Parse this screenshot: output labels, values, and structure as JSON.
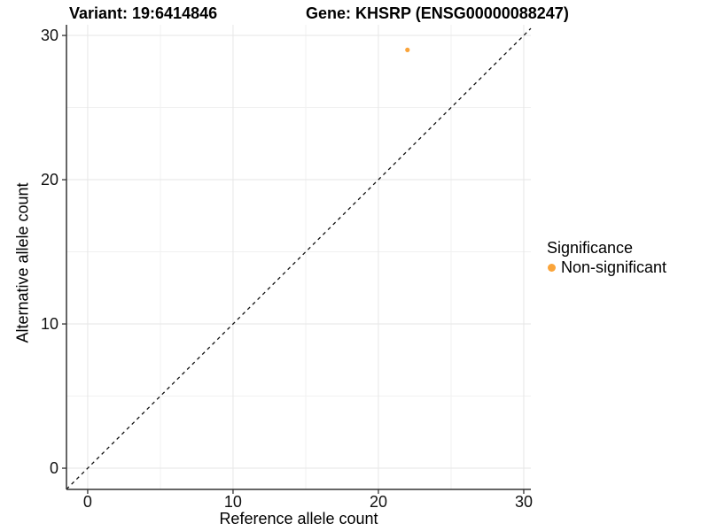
{
  "chart_data": {
    "type": "scatter",
    "title": {
      "left": "Variant: 19:6414846",
      "right": "Gene: KHSRP (ENSG00000088247)"
    },
    "xlabel": "Reference allele count",
    "ylabel": "Alternative allele count",
    "xlim": [
      -1.46,
      30.49
    ],
    "ylim": [
      -1.47,
      30.74
    ],
    "x_ticks": [
      0,
      10,
      20,
      30
    ],
    "y_ticks": [
      0,
      10,
      20,
      30
    ],
    "x_minor_ticks": [
      5,
      15,
      25
    ],
    "y_minor_ticks": [
      5,
      15,
      25
    ],
    "grid": true,
    "identity_line": {
      "style": "dashed",
      "equation": "y = x"
    },
    "points": [
      {
        "x": 22,
        "y": 29,
        "series": "Non-significant"
      }
    ],
    "legend": {
      "title": "Significance",
      "position": "right",
      "entries": [
        {
          "label": "Non-significant",
          "color": "#FAA43A"
        }
      ]
    },
    "colors": {
      "point": "#FAA43A",
      "grid_major": "#e6e6e6",
      "grid_minor": "#f1f1f1",
      "axis": "#333333",
      "dashed_line": "#111111",
      "text": "#000000",
      "background": "#ffffff"
    }
  }
}
